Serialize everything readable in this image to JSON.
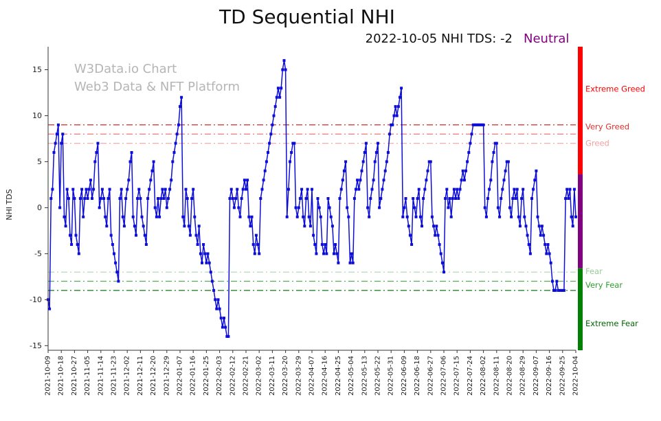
{
  "title": "TD Sequential NHI",
  "subtitle": {
    "date_text": "2022-10-05 NHI TDS: -2",
    "status": "Neutral",
    "status_color": "#800080"
  },
  "watermark": {
    "line1": "W3Data.io Chart",
    "line2": "Web3 Data & NFT Platform"
  },
  "chart_data": {
    "type": "line",
    "title": "TD Sequential NHI",
    "ylabel": "NHI TDS",
    "ylim": [
      -15.5,
      17.5
    ],
    "yticks": [
      -15,
      -10,
      -5,
      0,
      5,
      10,
      15
    ],
    "line_color": "#0d0dd8",
    "marker": "square",
    "grid": false,
    "x_tick_interval_days": 9,
    "x_tick_labels": [
      "2021-10-09",
      "2021-10-18",
      "2021-10-27",
      "2021-11-05",
      "2021-11-14",
      "2021-11-23",
      "2021-12-02",
      "2021-12-11",
      "2021-12-20",
      "2021-12-29",
      "2022-01-07",
      "2022-01-16",
      "2022-01-25",
      "2022-02-03",
      "2022-02-12",
      "2022-02-21",
      "2022-03-02",
      "2022-03-11",
      "2022-03-20",
      "2022-03-29",
      "2022-04-07",
      "2022-04-16",
      "2022-04-25",
      "2022-05-04",
      "2022-05-13",
      "2022-05-22",
      "2022-05-31",
      "2022-06-09",
      "2022-06-18",
      "2022-06-27",
      "2022-07-06",
      "2022-07-15",
      "2022-07-24",
      "2022-08-02",
      "2022-08-11",
      "2022-08-20",
      "2022-08-29",
      "2022-09-07",
      "2022-09-16",
      "2022-09-25",
      "2022-10-04"
    ],
    "values": [
      -10,
      -11,
      1,
      2,
      6,
      7,
      8,
      9,
      0,
      7,
      8,
      -1,
      -2,
      2,
      1,
      -3,
      -4,
      2,
      1,
      -3,
      -4,
      -5,
      1,
      2,
      -1,
      1,
      2,
      1,
      2,
      3,
      1,
      2,
      5,
      6,
      7,
      0,
      1,
      2,
      1,
      -1,
      -2,
      1,
      2,
      -3,
      -4,
      -5,
      -6,
      -7,
      -8,
      1,
      2,
      -1,
      -2,
      1,
      2,
      3,
      5,
      6,
      -1,
      -2,
      -3,
      1,
      2,
      1,
      -1,
      -2,
      -3,
      -4,
      1,
      2,
      3,
      4,
      5,
      0,
      -1,
      1,
      -1,
      1,
      2,
      1,
      2,
      0,
      1,
      2,
      3,
      5,
      6,
      7,
      8,
      9,
      11,
      12,
      -1,
      -2,
      2,
      1,
      -2,
      -3,
      1,
      2,
      -1,
      -3,
      -4,
      -2,
      -5,
      -6,
      -4,
      -5,
      -6,
      -5,
      -6,
      -7,
      -8,
      -9,
      -10,
      -11,
      -10,
      -11,
      -12,
      -13,
      -12,
      -13,
      -14,
      -14,
      1,
      2,
      1,
      0,
      1,
      2,
      0,
      -1,
      1,
      2,
      3,
      2,
      3,
      -1,
      -2,
      -1,
      -4,
      -5,
      -3,
      -4,
      -5,
      1,
      2,
      3,
      4,
      5,
      6,
      7,
      8,
      9,
      10,
      11,
      12,
      13,
      12,
      13,
      15,
      16,
      15,
      -1,
      2,
      5,
      6,
      7,
      7,
      0,
      -1,
      0,
      1,
      2,
      -1,
      -2,
      1,
      2,
      -1,
      -2,
      2,
      -3,
      -4,
      -5,
      1,
      0,
      -1,
      -4,
      -5,
      -4,
      -5,
      1,
      0,
      -1,
      -2,
      -5,
      -4,
      -5,
      -6,
      1,
      2,
      3,
      4,
      5,
      0,
      -1,
      -6,
      -5,
      -6,
      1,
      2,
      3,
      2,
      3,
      4,
      5,
      6,
      7,
      0,
      -1,
      1,
      2,
      3,
      5,
      6,
      7,
      0,
      1,
      2,
      3,
      4,
      5,
      6,
      8,
      9,
      9,
      10,
      11,
      10,
      11,
      12,
      13,
      -1,
      0,
      1,
      -1,
      -2,
      -3,
      -4,
      1,
      0,
      -1,
      1,
      2,
      -1,
      -2,
      1,
      2,
      3,
      4,
      5,
      5,
      -1,
      -2,
      -3,
      -2,
      -3,
      -4,
      -5,
      -6,
      -7,
      1,
      2,
      0,
      1,
      -1,
      1,
      2,
      1,
      2,
      1,
      2,
      3,
      4,
      3,
      4,
      5,
      6,
      7,
      8,
      9,
      9,
      9,
      9,
      9,
      9,
      9,
      9,
      0,
      -1,
      1,
      2,
      3,
      5,
      6,
      7,
      7,
      0,
      -1,
      1,
      2,
      3,
      4,
      5,
      5,
      0,
      -1,
      1,
      2,
      1,
      2,
      -1,
      -2,
      1,
      2,
      -1,
      -2,
      -3,
      -4,
      -5,
      1,
      2,
      3,
      4,
      -1,
      -2,
      -3,
      -2,
      -3,
      -4,
      -5,
      -4,
      -5,
      -6,
      -8,
      -9,
      -9,
      -8,
      -9,
      -9,
      -9,
      -9,
      -9,
      1,
      2,
      1,
      2,
      -1,
      -2,
      2,
      -1
    ],
    "reference_lines": [
      {
        "y": 9,
        "color": "#cc1111",
        "style": "dash-dot"
      },
      {
        "y": 8,
        "color": "#ee6666",
        "style": "dash-dot"
      },
      {
        "y": 7,
        "color": "#f6aaaa",
        "style": "dash-dot"
      },
      {
        "y": -7,
        "color": "#a9d8a9",
        "style": "dash-dot"
      },
      {
        "y": -8,
        "color": "#55aa55",
        "style": "dash-dot"
      },
      {
        "y": -9,
        "color": "#117711",
        "style": "dash-dot"
      }
    ],
    "zone_labels": [
      {
        "text": "Extreme Greed",
        "y": 12.9,
        "color": "#ff0000"
      },
      {
        "text": "Very Greed",
        "y": 8.8,
        "color": "#e03030"
      },
      {
        "text": "Greed",
        "y": 7.0,
        "color": "#f4a0a0"
      },
      {
        "text": "Fear",
        "y": -6.9,
        "color": "#99cc99"
      },
      {
        "text": "Very Fear",
        "y": -8.4,
        "color": "#2e9e2e"
      },
      {
        "text": "Extreme Fear",
        "y": -12.6,
        "color": "#006600"
      }
    ],
    "right_bar_segments": [
      {
        "from_frac": 0.0,
        "to_frac": 0.42,
        "color": "#ff0000"
      },
      {
        "from_frac": 0.42,
        "to_frac": 0.73,
        "color": "#800080"
      },
      {
        "from_frac": 0.73,
        "to_frac": 1.0,
        "color": "#008000"
      }
    ]
  }
}
